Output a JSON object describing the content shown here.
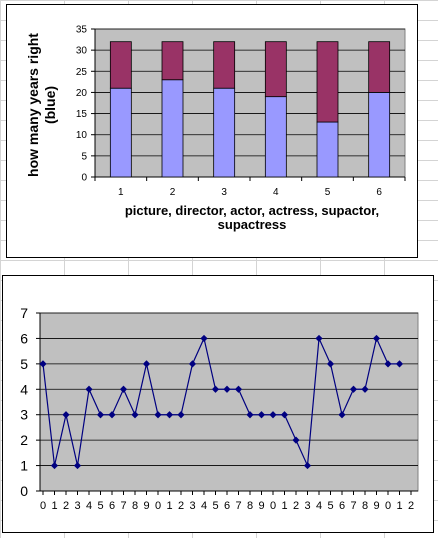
{
  "chart_data": [
    {
      "type": "bar",
      "stacked": true,
      "categories": [
        "1",
        "2",
        "3",
        "4",
        "5",
        "6"
      ],
      "series": [
        {
          "values": [
            21,
            23,
            21,
            19,
            13,
            20
          ],
          "color": "#9999ff"
        },
        {
          "values": [
            11,
            9,
            11,
            13,
            19,
            12
          ],
          "color": "#993366"
        }
      ],
      "ylabel": "how many years right (blue)",
      "xlabel_lines": [
        "picture, director, actor, actress, supactor,",
        "supactress"
      ],
      "ylim": [
        0,
        35
      ],
      "yticks": [
        "0",
        "5",
        "10",
        "15",
        "20",
        "25",
        "30",
        "35"
      ],
      "grid": true,
      "plot_background": "#c0c0c0"
    },
    {
      "type": "line",
      "x_labels": [
        "0",
        "1",
        "2",
        "3",
        "4",
        "5",
        "6",
        "7",
        "8",
        "9",
        "0",
        "1",
        "2",
        "3",
        "4",
        "5",
        "6",
        "7",
        "8",
        "9",
        "0",
        "1",
        "2",
        "3",
        "4",
        "5",
        "6",
        "7",
        "8",
        "9",
        "0",
        "1",
        "2"
      ],
      "series": [
        {
          "values": [
            5,
            1,
            3,
            1,
            4,
            3,
            3,
            4,
            3,
            5,
            3,
            3,
            3,
            5,
            6,
            4,
            4,
            4,
            3,
            3,
            3,
            3,
            2,
            1,
            6,
            5,
            3,
            4,
            4,
            6,
            5,
            5
          ],
          "color": "#000080",
          "marker": "diamond"
        }
      ],
      "ylim": [
        0,
        7
      ],
      "yticks": [
        "0",
        "1",
        "2",
        "3",
        "4",
        "5",
        "6",
        "7"
      ],
      "grid": true,
      "plot_background": "#c0c0c0"
    }
  ]
}
